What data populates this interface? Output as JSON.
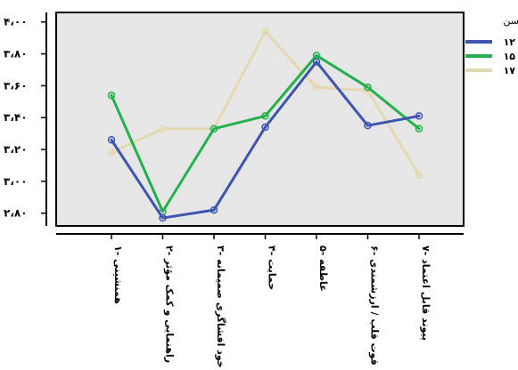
{
  "chart_data": {
    "type": "line",
    "title": "",
    "xlabel": "",
    "ylabel": "",
    "categories": [
      "۱- همنشینی",
      "۲- راهنمایی و کمک مؤثر",
      "۳- خود افشاگری صمیمانه",
      "۴- حمایت",
      "۵- عاطفه",
      "۶- قوت قلب / ارزشمندی",
      "۷- پیوند قابل اعتماد"
    ],
    "yticks": [
      "۲،۸۰",
      "۳،۰۰",
      "۳،۲۰",
      "۳،۴۰",
      "۳،۶۰",
      "۳،۸۰",
      "۴،۰۰"
    ],
    "ytick_values": [
      2.8,
      3.0,
      3.2,
      3.4,
      3.6,
      3.8,
      4.0
    ],
    "ylim": [
      2.72,
      4.06
    ],
    "legend_title": "سن",
    "legend_position": "top-right",
    "grid": false,
    "plot_background": "#e6e6e6",
    "series": [
      {
        "name": "۱۲",
        "color": "#3d55b0",
        "values": [
          3.26,
          2.77,
          2.82,
          3.34,
          3.75,
          3.35,
          3.41
        ]
      },
      {
        "name": "۱۵",
        "color": "#22b14c",
        "values": [
          3.54,
          2.81,
          3.33,
          3.41,
          3.79,
          3.59,
          3.33
        ]
      },
      {
        "name": "۱۷",
        "color": "#e3d8b0",
        "values": [
          3.18,
          3.33,
          3.33,
          3.94,
          3.59,
          3.57,
          3.04
        ]
      }
    ]
  }
}
